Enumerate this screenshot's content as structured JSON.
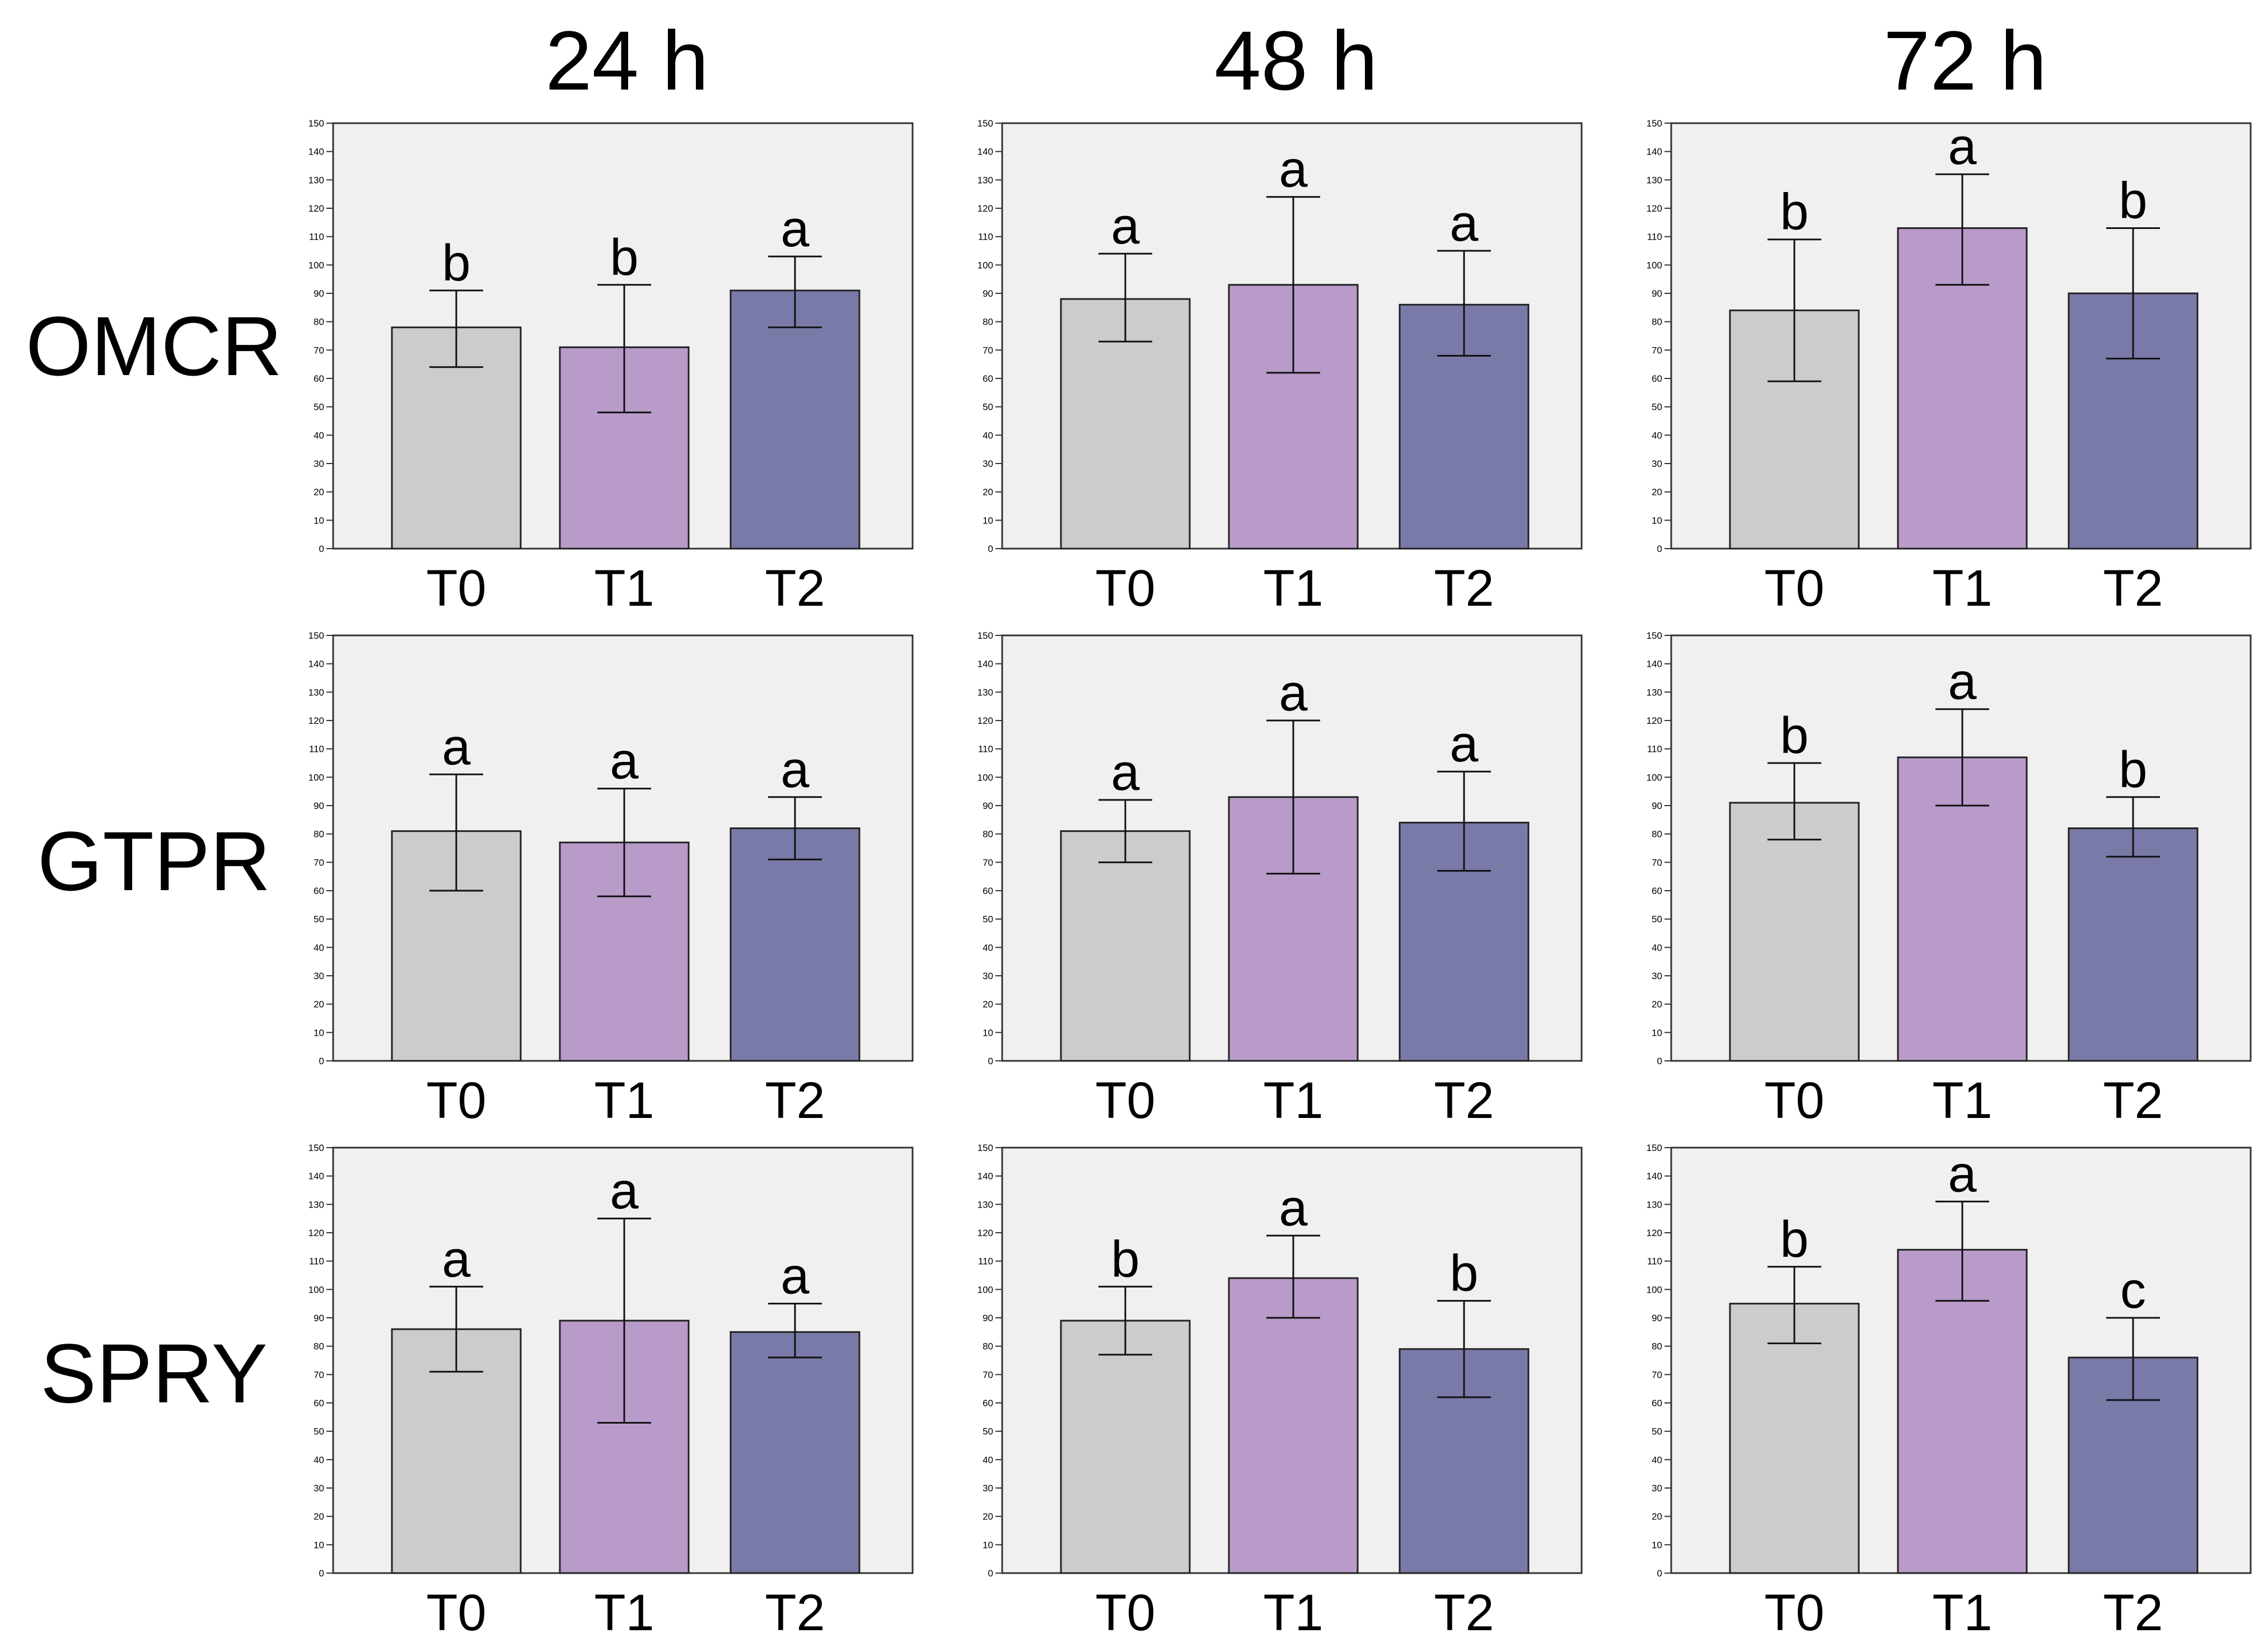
{
  "column_titles": [
    "24 h",
    "48 h",
    "72 h"
  ],
  "row_titles": [
    "OMCR",
    "GTPR",
    "SPRY"
  ],
  "colors": {
    "T0": "#cccccc",
    "T1": "#b89bc9",
    "T2": "#7a7aa8",
    "background": "#f0f0f0"
  },
  "chart_data": [
    {
      "type": "bar",
      "gene": "OMCR",
      "time": "24 h",
      "categories": [
        "T0",
        "T1",
        "T2"
      ],
      "values": [
        78,
        71,
        91
      ],
      "error": [
        [
          64,
          91
        ],
        [
          48,
          93
        ],
        [
          78,
          103
        ]
      ],
      "significance": [
        "b",
        "b",
        "a"
      ],
      "ylim": [
        0,
        150
      ],
      "yticks": [
        0,
        10,
        20,
        30,
        40,
        50,
        60,
        70,
        80,
        90,
        100,
        110,
        120,
        130,
        140,
        150
      ]
    },
    {
      "type": "bar",
      "gene": "OMCR",
      "time": "48 h",
      "categories": [
        "T0",
        "T1",
        "T2"
      ],
      "values": [
        88,
        93,
        86
      ],
      "error": [
        [
          73,
          104
        ],
        [
          62,
          124
        ],
        [
          68,
          105
        ]
      ],
      "significance": [
        "a",
        "a",
        "a"
      ],
      "ylim": [
        0,
        150
      ],
      "yticks": [
        0,
        10,
        20,
        30,
        40,
        50,
        60,
        70,
        80,
        90,
        100,
        110,
        120,
        130,
        140,
        150
      ]
    },
    {
      "type": "bar",
      "gene": "OMCR",
      "time": "72 h",
      "categories": [
        "T0",
        "T1",
        "T2"
      ],
      "values": [
        84,
        113,
        90
      ],
      "error": [
        [
          59,
          109
        ],
        [
          93,
          132
        ],
        [
          67,
          113
        ]
      ],
      "significance": [
        "b",
        "a",
        "b"
      ],
      "ylim": [
        0,
        150
      ],
      "yticks": [
        0,
        10,
        20,
        30,
        40,
        50,
        60,
        70,
        80,
        90,
        100,
        110,
        120,
        130,
        140,
        150
      ]
    },
    {
      "type": "bar",
      "gene": "GTPR",
      "time": "24 h",
      "categories": [
        "T0",
        "T1",
        "T2"
      ],
      "values": [
        81,
        77,
        82
      ],
      "error": [
        [
          60,
          101
        ],
        [
          58,
          96
        ],
        [
          71,
          93
        ]
      ],
      "significance": [
        "a",
        "a",
        "a"
      ],
      "ylim": [
        0,
        150
      ],
      "yticks": [
        0,
        10,
        20,
        30,
        40,
        50,
        60,
        70,
        80,
        90,
        100,
        110,
        120,
        130,
        140,
        150
      ]
    },
    {
      "type": "bar",
      "gene": "GTPR",
      "time": "48 h",
      "categories": [
        "T0",
        "T1",
        "T2"
      ],
      "values": [
        81,
        93,
        84
      ],
      "error": [
        [
          70,
          92
        ],
        [
          66,
          120
        ],
        [
          67,
          102
        ]
      ],
      "significance": [
        "a",
        "a",
        "a"
      ],
      "ylim": [
        0,
        150
      ],
      "yticks": [
        0,
        10,
        20,
        30,
        40,
        50,
        60,
        70,
        80,
        90,
        100,
        110,
        120,
        130,
        140,
        150
      ]
    },
    {
      "type": "bar",
      "gene": "GTPR",
      "time": "72 h",
      "categories": [
        "T0",
        "T1",
        "T2"
      ],
      "values": [
        91,
        107,
        82
      ],
      "error": [
        [
          78,
          105
        ],
        [
          90,
          124
        ],
        [
          72,
          93
        ]
      ],
      "significance": [
        "b",
        "a",
        "b"
      ],
      "ylim": [
        0,
        150
      ],
      "yticks": [
        0,
        10,
        20,
        30,
        40,
        50,
        60,
        70,
        80,
        90,
        100,
        110,
        120,
        130,
        140,
        150
      ]
    },
    {
      "type": "bar",
      "gene": "SPRY",
      "time": "24 h",
      "categories": [
        "T0",
        "T1",
        "T2"
      ],
      "values": [
        86,
        89,
        85
      ],
      "error": [
        [
          71,
          101
        ],
        [
          53,
          125
        ],
        [
          76,
          95
        ]
      ],
      "significance": [
        "a",
        "a",
        "a"
      ],
      "ylim": [
        0,
        150
      ],
      "yticks": [
        0,
        10,
        20,
        30,
        40,
        50,
        60,
        70,
        80,
        90,
        100,
        110,
        120,
        130,
        140,
        150
      ]
    },
    {
      "type": "bar",
      "gene": "SPRY",
      "time": "48 h",
      "categories": [
        "T0",
        "T1",
        "T2"
      ],
      "values": [
        89,
        104,
        79
      ],
      "error": [
        [
          77,
          101
        ],
        [
          90,
          119
        ],
        [
          62,
          96
        ]
      ],
      "significance": [
        "b",
        "a",
        "b"
      ],
      "ylim": [
        0,
        150
      ],
      "yticks": [
        0,
        10,
        20,
        30,
        40,
        50,
        60,
        70,
        80,
        90,
        100,
        110,
        120,
        130,
        140,
        150
      ]
    },
    {
      "type": "bar",
      "gene": "SPRY",
      "time": "72 h",
      "categories": [
        "T0",
        "T1",
        "T2"
      ],
      "values": [
        95,
        114,
        76
      ],
      "error": [
        [
          81,
          108
        ],
        [
          96,
          131
        ],
        [
          61,
          90
        ]
      ],
      "significance": [
        "b",
        "a",
        "c"
      ],
      "ylim": [
        0,
        150
      ],
      "yticks": [
        0,
        10,
        20,
        30,
        40,
        50,
        60,
        70,
        80,
        90,
        100,
        110,
        120,
        130,
        140,
        150
      ]
    }
  ]
}
